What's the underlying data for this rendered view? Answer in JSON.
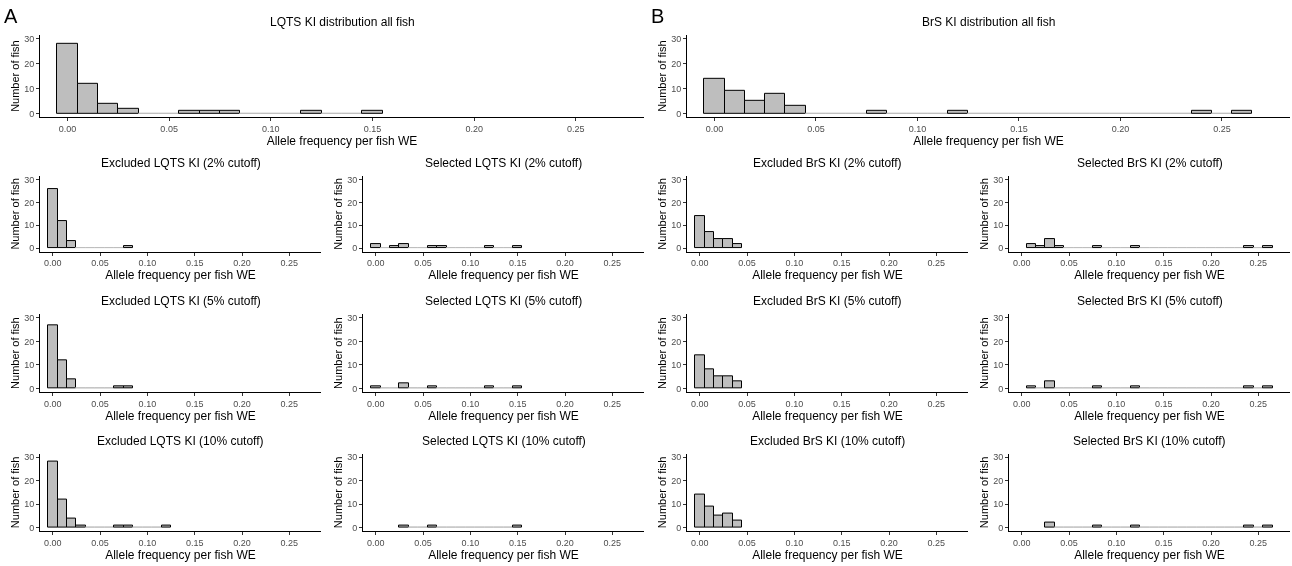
{
  "chart_data": [
    {
      "type": "histogram",
      "title": "LQTS KI distribution all fish",
      "annotations": [
        "A"
      ],
      "xlabel": "Allele frequency per fish WE",
      "ylabel": "Number of fish",
      "color": "#bebebe",
      "grid": false,
      "xlim": [
        -0.0135,
        0.2835
      ],
      "xticks": [
        {
          "value": 0,
          "label": "0.00"
        },
        0.05,
        {
          "value": 0.1,
          "label": "0.10"
        },
        0.15,
        {
          "value": 0.2,
          "label": "0.20"
        },
        0.25
      ],
      "ylim": [
        -1.5,
        31.5
      ],
      "yticks": [
        0,
        10,
        20,
        30
      ],
      "bins": [
        -0.005,
        0.005,
        0.015,
        0.025,
        0.035,
        0.045,
        0.055,
        0.065,
        0.075,
        0.085,
        0.095,
        0.105,
        0.115,
        0.125,
        0.135,
        0.145,
        0.155
      ],
      "values": [
        28,
        12,
        4,
        2,
        0,
        0,
        1,
        1,
        1,
        0,
        0,
        0,
        1,
        0,
        0,
        1
      ]
    },
    {
      "type": "histogram",
      "title": "BrS KI distribution all fish",
      "annotations": [
        "B"
      ],
      "xlabel": "Allele frequency per fish WE",
      "ylabel": "Number of fish",
      "color": "#bebebe",
      "grid": false,
      "xlim": [
        -0.0135,
        0.2835
      ],
      "xticks": [
        {
          "value": 0,
          "label": "0.00"
        },
        0.05,
        {
          "value": 0.1,
          "label": "0.10"
        },
        0.15,
        {
          "value": 0.2,
          "label": "0.20"
        },
        0.25
      ],
      "ylim": [
        -1.5,
        31.5
      ],
      "yticks": [
        0,
        10,
        20,
        30
      ],
      "bins": [
        -0.005,
        0.005,
        0.015,
        0.025,
        0.035,
        0.045,
        0.055,
        0.065,
        0.075,
        0.085,
        0.095,
        0.105,
        0.115,
        0.125,
        0.135,
        0.145,
        0.155,
        0.165,
        0.175,
        0.185,
        0.195,
        0.205,
        0.215,
        0.225,
        0.235,
        0.245,
        0.255,
        0.265
      ],
      "values": [
        14,
        9,
        5,
        8,
        3,
        0,
        0,
        0,
        1,
        0,
        0,
        0,
        1,
        0,
        0,
        0,
        0,
        0,
        0,
        0,
        0,
        0,
        0,
        0,
        1,
        0,
        1
      ]
    },
    {
      "type": "histogram",
      "title": "Excluded LQTS KI (2% cutoff)",
      "xlabel": "Allele frequency per fish WE",
      "ylabel": "Number of fish",
      "color": "#bebebe",
      "grid": false,
      "xlim": [
        -0.0135,
        0.2835
      ],
      "xticks": [
        {
          "value": 0,
          "label": "0.00"
        },
        0.05,
        {
          "value": 0.1,
          "label": "0.10"
        },
        0.15,
        {
          "value": 0.2,
          "label": "0.20"
        },
        0.25
      ],
      "ylim": [
        -1.5,
        31.5
      ],
      "yticks": [
        0,
        10,
        20,
        30
      ],
      "bins": [
        -0.005,
        0.005,
        0.015,
        0.025,
        0.035,
        0.045,
        0.055,
        0.065,
        0.075,
        0.085
      ],
      "values": [
        26,
        12,
        3,
        0,
        0,
        0,
        0,
        0,
        1
      ]
    },
    {
      "type": "histogram",
      "title": "Selected LQTS KI (2% cutoff)",
      "xlabel": "Allele frequency per fish WE",
      "ylabel": "Number of fish",
      "color": "#bebebe",
      "grid": false,
      "xlim": [
        -0.0135,
        0.2835
      ],
      "xticks": [
        {
          "value": 0,
          "label": "0.00"
        },
        0.05,
        {
          "value": 0.1,
          "label": "0.10"
        },
        0.15,
        {
          "value": 0.2,
          "label": "0.20"
        },
        0.25
      ],
      "ylim": [
        -1.5,
        31.5
      ],
      "yticks": [
        0,
        10,
        20,
        30
      ],
      "bins": [
        -0.005,
        0.005,
        0.015,
        0.025,
        0.035,
        0.045,
        0.055,
        0.065,
        0.075,
        0.085,
        0.095,
        0.105,
        0.115,
        0.125,
        0.135,
        0.145,
        0.155
      ],
      "values": [
        2,
        0,
        1,
        2,
        0,
        0,
        1,
        1,
        0,
        0,
        0,
        0,
        1,
        0,
        0,
        1
      ]
    },
    {
      "type": "histogram",
      "title": "Excluded BrS KI (2% cutoff)",
      "xlabel": "Allele frequency per fish WE",
      "ylabel": "Number of fish",
      "color": "#bebebe",
      "grid": false,
      "xlim": [
        -0.0135,
        0.2835
      ],
      "xticks": [
        {
          "value": 0,
          "label": "0.00"
        },
        0.05,
        {
          "value": 0.1,
          "label": "0.10"
        },
        0.15,
        {
          "value": 0.2,
          "label": "0.20"
        },
        0.25
      ],
      "ylim": [
        -1.5,
        31.5
      ],
      "yticks": [
        0,
        10,
        20,
        30
      ],
      "bins": [
        -0.005,
        0.005,
        0.015,
        0.025,
        0.035,
        0.045
      ],
      "values": [
        14,
        7,
        4,
        4,
        2
      ]
    },
    {
      "type": "histogram",
      "title": "Selected BrS KI (2% cutoff)",
      "xlabel": "Allele frequency per fish WE",
      "ylabel": "Number of fish",
      "color": "#bebebe",
      "grid": false,
      "xlim": [
        -0.0135,
        0.2835
      ],
      "xticks": [
        {
          "value": 0,
          "label": "0.00"
        },
        0.05,
        {
          "value": 0.1,
          "label": "0.10"
        },
        0.15,
        {
          "value": 0.2,
          "label": "0.20"
        },
        0.25
      ],
      "ylim": [
        -1.5,
        31.5
      ],
      "yticks": [
        0,
        10,
        20,
        30
      ],
      "bins": [
        0.005,
        0.015,
        0.025,
        0.035,
        0.045,
        0.055,
        0.065,
        0.075,
        0.085,
        0.095,
        0.105,
        0.115,
        0.125,
        0.135,
        0.145,
        0.155,
        0.165,
        0.175,
        0.185,
        0.195,
        0.205,
        0.215,
        0.225,
        0.235,
        0.245,
        0.255,
        0.265
      ],
      "values": [
        2,
        1,
        4,
        1,
        0,
        0,
        0,
        1,
        0,
        0,
        0,
        1,
        0,
        0,
        0,
        0,
        0,
        0,
        0,
        0,
        0,
        0,
        0,
        1,
        0,
        1
      ]
    },
    {
      "type": "histogram",
      "title": "Excluded LQTS KI (5% cutoff)",
      "xlabel": "Allele frequency per fish WE",
      "ylabel": "Number of fish",
      "color": "#bebebe",
      "grid": false,
      "xlim": [
        -0.0135,
        0.2835
      ],
      "xticks": [
        {
          "value": 0,
          "label": "0.00"
        },
        0.05,
        {
          "value": 0.1,
          "label": "0.10"
        },
        0.15,
        {
          "value": 0.2,
          "label": "0.20"
        },
        0.25
      ],
      "ylim": [
        -1.5,
        31.5
      ],
      "yticks": [
        0,
        10,
        20,
        30
      ],
      "bins": [
        -0.005,
        0.005,
        0.015,
        0.025,
        0.035,
        0.045,
        0.055,
        0.065,
        0.075,
        0.085
      ],
      "values": [
        27,
        12,
        4,
        0,
        0,
        0,
        0,
        1,
        1
      ]
    },
    {
      "type": "histogram",
      "title": "Selected LQTS KI (5% cutoff)",
      "xlabel": "Allele frequency per fish WE",
      "ylabel": "Number of fish",
      "color": "#bebebe",
      "grid": false,
      "xlim": [
        -0.0135,
        0.2835
      ],
      "xticks": [
        {
          "value": 0,
          "label": "0.00"
        },
        0.05,
        {
          "value": 0.1,
          "label": "0.10"
        },
        0.15,
        {
          "value": 0.2,
          "label": "0.20"
        },
        0.25
      ],
      "ylim": [
        -1.5,
        31.5
      ],
      "yticks": [
        0,
        10,
        20,
        30
      ],
      "bins": [
        -0.005,
        0.005,
        0.015,
        0.025,
        0.035,
        0.045,
        0.055,
        0.065,
        0.075,
        0.085,
        0.095,
        0.105,
        0.115,
        0.125,
        0.135,
        0.145,
        0.155
      ],
      "values": [
        1,
        0,
        0,
        2,
        0,
        0,
        1,
        0,
        0,
        0,
        0,
        0,
        1,
        0,
        0,
        1
      ]
    },
    {
      "type": "histogram",
      "title": "Excluded BrS KI (5% cutoff)",
      "xlabel": "Allele frequency per fish WE",
      "ylabel": "Number of fish",
      "color": "#bebebe",
      "grid": false,
      "xlim": [
        -0.0135,
        0.2835
      ],
      "xticks": [
        {
          "value": 0,
          "label": "0.00"
        },
        0.05,
        {
          "value": 0.1,
          "label": "0.10"
        },
        0.15,
        {
          "value": 0.2,
          "label": "0.20"
        },
        0.25
      ],
      "ylim": [
        -1.5,
        31.5
      ],
      "yticks": [
        0,
        10,
        20,
        30
      ],
      "bins": [
        -0.005,
        0.005,
        0.015,
        0.025,
        0.035,
        0.045
      ],
      "values": [
        14,
        8,
        5,
        5,
        3
      ]
    },
    {
      "type": "histogram",
      "title": "Selected BrS KI (5% cutoff)",
      "xlabel": "Allele frequency per fish WE",
      "ylabel": "Number of fish",
      "color": "#bebebe",
      "grid": false,
      "xlim": [
        -0.0135,
        0.2835
      ],
      "xticks": [
        {
          "value": 0,
          "label": "0.00"
        },
        0.05,
        {
          "value": 0.1,
          "label": "0.10"
        },
        0.15,
        {
          "value": 0.2,
          "label": "0.20"
        },
        0.25
      ],
      "ylim": [
        -1.5,
        31.5
      ],
      "yticks": [
        0,
        10,
        20,
        30
      ],
      "bins": [
        0.005,
        0.015,
        0.025,
        0.035,
        0.045,
        0.055,
        0.065,
        0.075,
        0.085,
        0.095,
        0.105,
        0.115,
        0.125,
        0.135,
        0.145,
        0.155,
        0.165,
        0.175,
        0.185,
        0.195,
        0.205,
        0.215,
        0.225,
        0.235,
        0.245,
        0.255,
        0.265
      ],
      "values": [
        1,
        0,
        3,
        0,
        0,
        0,
        0,
        1,
        0,
        0,
        0,
        1,
        0,
        0,
        0,
        0,
        0,
        0,
        0,
        0,
        0,
        0,
        0,
        1,
        0,
        1
      ]
    },
    {
      "type": "histogram",
      "title": "Excluded LQTS KI (10% cutoff)",
      "xlabel": "Allele frequency per fish WE",
      "ylabel": "Number of fish",
      "color": "#bebebe",
      "grid": false,
      "xlim": [
        -0.0135,
        0.2835
      ],
      "xticks": [
        {
          "value": 0,
          "label": "0.00"
        },
        0.05,
        {
          "value": 0.1,
          "label": "0.10"
        },
        0.15,
        {
          "value": 0.2,
          "label": "0.20"
        },
        0.25
      ],
      "ylim": [
        -1.5,
        31.5
      ],
      "yticks": [
        0,
        10,
        20,
        30
      ],
      "bins": [
        -0.005,
        0.005,
        0.015,
        0.025,
        0.035,
        0.045,
        0.055,
        0.065,
        0.075,
        0.085,
        0.095,
        0.105,
        0.115,
        0.125
      ],
      "values": [
        28,
        12,
        4,
        1,
        0,
        0,
        0,
        1,
        1,
        0,
        0,
        0,
        1
      ]
    },
    {
      "type": "histogram",
      "title": "Selected LQTS KI (10% cutoff)",
      "xlabel": "Allele frequency per fish WE",
      "ylabel": "Number of fish",
      "color": "#bebebe",
      "grid": false,
      "xlim": [
        -0.0135,
        0.2835
      ],
      "xticks": [
        {
          "value": 0,
          "label": "0.00"
        },
        0.05,
        {
          "value": 0.1,
          "label": "0.10"
        },
        0.15,
        {
          "value": 0.2,
          "label": "0.20"
        },
        0.25
      ],
      "ylim": [
        -1.5,
        31.5
      ],
      "yticks": [
        0,
        10,
        20,
        30
      ],
      "bins": [
        0.025,
        0.035,
        0.045,
        0.055,
        0.065,
        0.075,
        0.085,
        0.095,
        0.105,
        0.115,
        0.125,
        0.135,
        0.145,
        0.155
      ],
      "values": [
        1,
        0,
        0,
        1,
        0,
        0,
        0,
        0,
        0,
        0,
        0,
        0,
        1
      ]
    },
    {
      "type": "histogram",
      "title": "Excluded BrS KI (10% cutoff)",
      "xlabel": "Allele frequency per fish WE",
      "ylabel": "Number of fish",
      "color": "#bebebe",
      "grid": false,
      "xlim": [
        -0.0135,
        0.2835
      ],
      "xticks": [
        {
          "value": 0,
          "label": "0.00"
        },
        0.05,
        {
          "value": 0.1,
          "label": "0.10"
        },
        0.15,
        {
          "value": 0.2,
          "label": "0.20"
        },
        0.25
      ],
      "ylim": [
        -1.5,
        31.5
      ],
      "yticks": [
        0,
        10,
        20,
        30
      ],
      "bins": [
        -0.005,
        0.005,
        0.015,
        0.025,
        0.035,
        0.045
      ],
      "values": [
        14,
        9,
        5,
        6,
        3
      ]
    },
    {
      "type": "histogram",
      "title": "Selected BrS KI (10% cutoff)",
      "xlabel": "Allele frequency per fish WE",
      "ylabel": "Number of fish",
      "color": "#bebebe",
      "grid": false,
      "xlim": [
        -0.0135,
        0.2835
      ],
      "xticks": [
        {
          "value": 0,
          "label": "0.00"
        },
        0.05,
        {
          "value": 0.1,
          "label": "0.10"
        },
        0.15,
        {
          "value": 0.2,
          "label": "0.20"
        },
        0.25
      ],
      "ylim": [
        -1.5,
        31.5
      ],
      "yticks": [
        0,
        10,
        20,
        30
      ],
      "bins": [
        0.025,
        0.035,
        0.045,
        0.055,
        0.065,
        0.075,
        0.085,
        0.095,
        0.105,
        0.115,
        0.125,
        0.135,
        0.145,
        0.155,
        0.165,
        0.175,
        0.185,
        0.195,
        0.205,
        0.215,
        0.225,
        0.235,
        0.245,
        0.255,
        0.265
      ],
      "values": [
        2,
        0,
        0,
        0,
        0,
        1,
        0,
        0,
        0,
        1,
        0,
        0,
        0,
        0,
        0,
        0,
        0,
        0,
        0,
        0,
        0,
        1,
        0,
        1
      ]
    }
  ]
}
